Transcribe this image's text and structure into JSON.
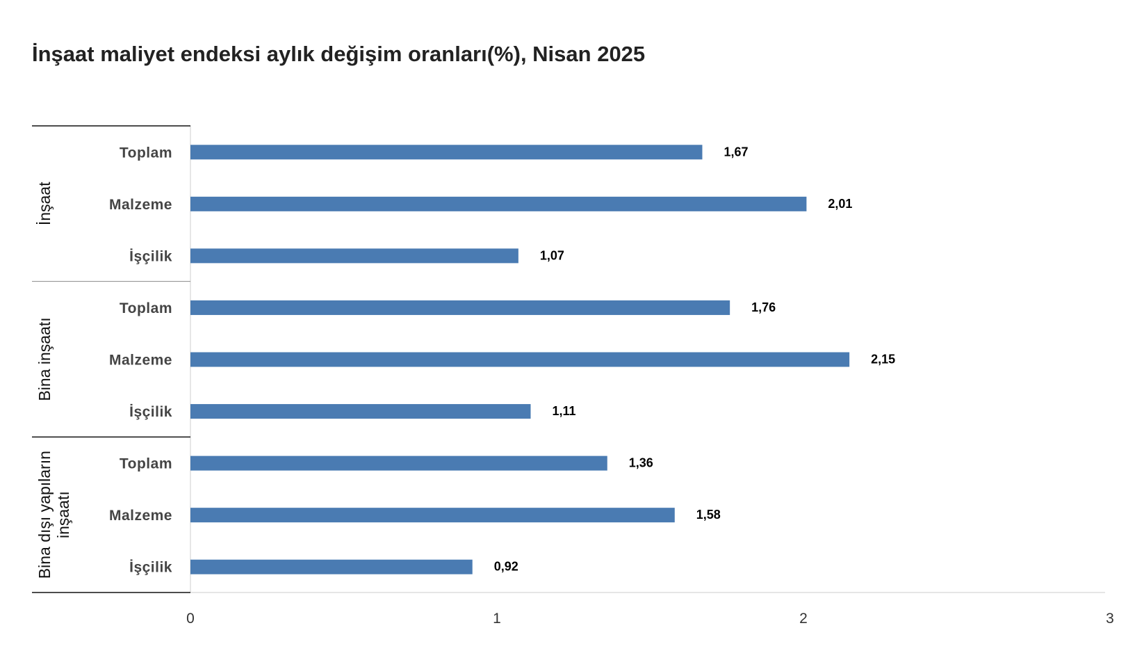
{
  "chart_data": {
    "type": "bar",
    "orientation": "horizontal",
    "title": "İnşaat maliyet endeksi aylık değişim oranları(%), Nisan 2025",
    "groups": [
      {
        "name": "İnşaat",
        "categories": [
          "Toplam",
          "Malzeme",
          "İşçilik"
        ],
        "values": [
          1.67,
          2.01,
          1.07
        ],
        "labels": [
          "1,67",
          "2,01",
          "1,07"
        ]
      },
      {
        "name": "Bina inşaatı",
        "categories": [
          "Toplam",
          "Malzeme",
          "İşçilik"
        ],
        "values": [
          1.76,
          2.15,
          1.11
        ],
        "labels": [
          "1,76",
          "2,15",
          "1,11"
        ]
      },
      {
        "name_lines": [
          "Bina dışı yapıların",
          "inşaatı"
        ],
        "name": "Bina dışı yapıların inşaatı",
        "categories": [
          "Toplam",
          "Malzeme",
          "İşçilik"
        ],
        "values": [
          1.36,
          1.58,
          0.92
        ],
        "labels": [
          "1,36",
          "1,58",
          "0,92"
        ]
      }
    ],
    "xlim": [
      0,
      3
    ],
    "xticks": [
      0,
      1,
      2,
      3
    ],
    "xtick_labels": [
      "0",
      "1",
      "2",
      "3"
    ],
    "bar_color": "#4a7bb2",
    "grid": false
  }
}
